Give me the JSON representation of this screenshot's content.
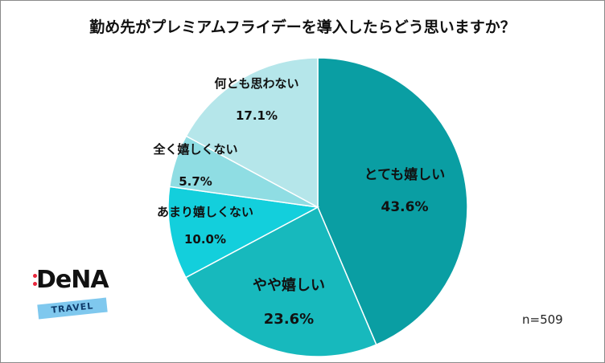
{
  "title": "勤め先がプレミアムフライデーを導入したらどう思いますか？",
  "sample_size": "n=509",
  "logo": {
    "wordmark": "DeNA",
    "sub": "TRAVEL"
  },
  "chart_data": {
    "type": "pie",
    "title": "勤め先がプレミアムフライデーを導入したらどう思いますか？",
    "slices": [
      {
        "label": "とても嬉しい",
        "value": 43.6,
        "display": "43.6%",
        "color": "#0a9ea3"
      },
      {
        "label": "やや嬉しい",
        "value": 23.6,
        "display": "23.6%",
        "color": "#17b9bd"
      },
      {
        "label": "あまり嬉しくない",
        "value": 10.0,
        "display": "10.0%",
        "color": "#13cfdc"
      },
      {
        "label": "全く嬉しくない",
        "value": 5.7,
        "display": "5.7%",
        "color": "#8fdde3"
      },
      {
        "label": "何とも思わない",
        "value": 17.1,
        "display": "17.1%",
        "color": "#b5e6ea"
      }
    ],
    "start_angle": "top",
    "direction": "clockwise"
  }
}
